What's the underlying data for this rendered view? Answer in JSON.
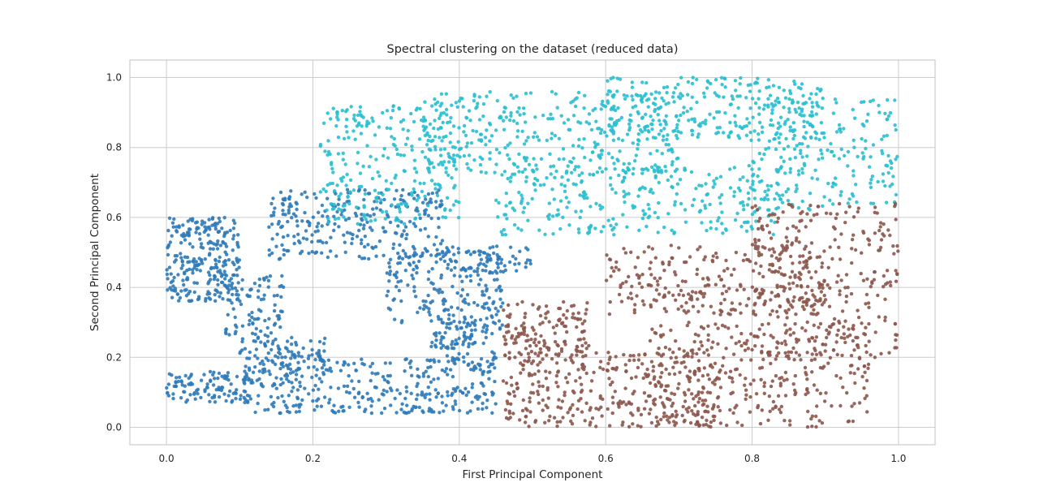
{
  "chart_data": {
    "type": "scatter",
    "title": "Spectral clustering on the dataset (reduced data)",
    "xlabel": "First Principal Component",
    "ylabel": "Second Principal Component",
    "xlim": [
      -0.05,
      1.05
    ],
    "ylim": [
      -0.05,
      1.05
    ],
    "xticks": [
      "0.0",
      "0.2",
      "0.4",
      "0.6",
      "0.8",
      "1.0"
    ],
    "yticks": [
      "0.0",
      "0.2",
      "0.4",
      "0.6",
      "0.8",
      "1.0"
    ],
    "grid": true,
    "legend": "none",
    "series": [
      {
        "color": "#2f7ab8",
        "regions": [
          {
            "x": [
              0.0,
              0.1
            ],
            "y": [
              0.36,
              0.6
            ],
            "n": 260
          },
          {
            "x": [
              0.0,
              0.12
            ],
            "y": [
              0.07,
              0.16
            ],
            "n": 120
          },
          {
            "x": [
              0.08,
              0.16
            ],
            "y": [
              0.26,
              0.44
            ],
            "n": 90
          },
          {
            "x": [
              0.1,
              0.22
            ],
            "y": [
              0.16,
              0.26
            ],
            "n": 90
          },
          {
            "x": [
              0.12,
              0.45
            ],
            "y": [
              0.04,
              0.2
            ],
            "n": 330
          },
          {
            "x": [
              0.14,
              0.38
            ],
            "y": [
              0.48,
              0.68
            ],
            "n": 280
          },
          {
            "x": [
              0.3,
              0.46
            ],
            "y": [
              0.28,
              0.5
            ],
            "n": 200
          },
          {
            "x": [
              0.36,
              0.45
            ],
            "y": [
              0.18,
              0.3
            ],
            "n": 90
          },
          {
            "x": [
              0.38,
              0.5
            ],
            "y": [
              0.44,
              0.52
            ],
            "n": 60
          }
        ]
      },
      {
        "color": "#29bfd0",
        "regions": [
          {
            "x": [
              0.21,
              0.4
            ],
            "y": [
              0.58,
              0.92
            ],
            "n": 260
          },
          {
            "x": [
              0.35,
              0.7
            ],
            "y": [
              0.72,
              0.96
            ],
            "n": 360
          },
          {
            "x": [
              0.45,
              0.85
            ],
            "y": [
              0.55,
              0.75
            ],
            "n": 300
          },
          {
            "x": [
              0.6,
              0.9
            ],
            "y": [
              0.82,
              1.0
            ],
            "n": 260
          },
          {
            "x": [
              0.8,
              1.0
            ],
            "y": [
              0.62,
              0.94
            ],
            "n": 220
          }
        ]
      },
      {
        "color": "#8c564b",
        "regions": [
          {
            "x": [
              0.46,
              0.76
            ],
            "y": [
              0.0,
              0.22
            ],
            "n": 360
          },
          {
            "x": [
              0.46,
              0.58
            ],
            "y": [
              0.22,
              0.36
            ],
            "n": 120
          },
          {
            "x": [
              0.6,
              0.9
            ],
            "y": [
              0.32,
              0.52
            ],
            "n": 260
          },
          {
            "x": [
              0.66,
              0.96
            ],
            "y": [
              0.0,
              0.3
            ],
            "n": 320
          },
          {
            "x": [
              0.8,
              1.0
            ],
            "y": [
              0.2,
              0.64
            ],
            "n": 300
          }
        ]
      }
    ]
  }
}
